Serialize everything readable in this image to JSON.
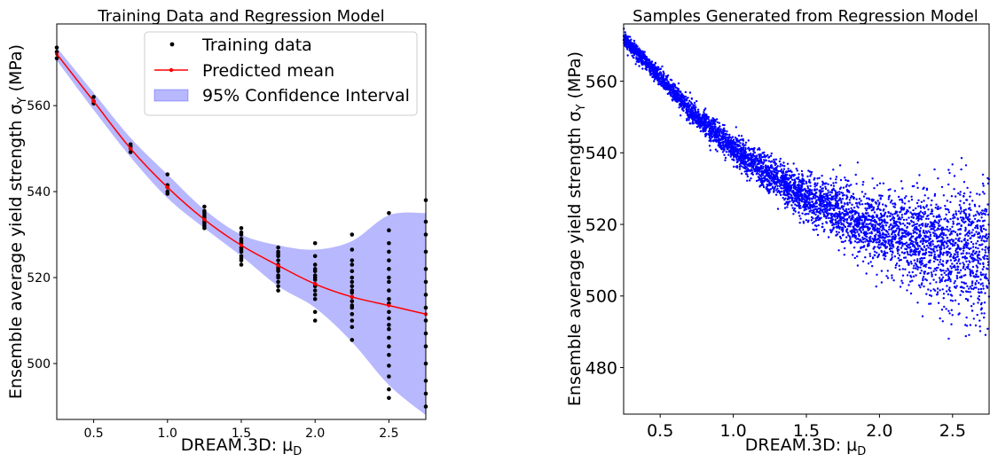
{
  "chart_data": [
    {
      "type": "scatter",
      "title": "Training Data and Regression Model",
      "xlabel": "DREAM.3D: μ",
      "xlabel_sub": "D",
      "ylabel": "Ensemble average yield strength σ",
      "ylabel_sub": "Y",
      "ylabel_unit": " (MPa)",
      "xlim": [
        0.25,
        2.75
      ],
      "ylim": [
        487,
        579
      ],
      "xticks": [
        0.5,
        1.0,
        1.5,
        2.0,
        2.5
      ],
      "xtick_labels": [
        "0.5",
        "1.0",
        "1.5",
        "2.0",
        "2.5"
      ],
      "yticks": [
        500,
        520,
        540,
        560
      ],
      "ytick_labels": [
        "500",
        "520",
        "540",
        "560"
      ],
      "grid": false,
      "legend_position": "top-right",
      "series": [
        {
          "name": "Training data",
          "kind": "points",
          "color": "#000000",
          "points": [
            [
              0.25,
              572.5
            ],
            [
              0.25,
              571.0
            ],
            [
              0.25,
              573.5
            ],
            [
              0.5,
              562.0
            ],
            [
              0.5,
              561.0
            ],
            [
              0.5,
              560.5
            ],
            [
              0.75,
              551.0
            ],
            [
              0.75,
              550.0
            ],
            [
              0.75,
              549.2
            ],
            [
              0.75,
              550.5
            ],
            [
              1.0,
              544.0
            ],
            [
              1.0,
              541.0
            ],
            [
              1.0,
              540.0
            ],
            [
              1.0,
              541.5
            ],
            [
              1.0,
              539.5
            ],
            [
              1.25,
              536.5
            ],
            [
              1.25,
              535.5
            ],
            [
              1.25,
              535.0
            ],
            [
              1.25,
              534.5
            ],
            [
              1.25,
              534.0
            ],
            [
              1.25,
              533.5
            ],
            [
              1.25,
              533.0
            ],
            [
              1.25,
              532.5
            ],
            [
              1.25,
              532.0
            ],
            [
              1.25,
              531.5
            ],
            [
              1.5,
              531.5
            ],
            [
              1.5,
              530.5
            ],
            [
              1.5,
              530.0
            ],
            [
              1.5,
              529.0
            ],
            [
              1.5,
              528.5
            ],
            [
              1.5,
              528.0
            ],
            [
              1.5,
              527.0
            ],
            [
              1.5,
              526.5
            ],
            [
              1.5,
              526.0
            ],
            [
              1.5,
              525.0
            ],
            [
              1.5,
              524.5
            ],
            [
              1.5,
              524.0
            ],
            [
              1.5,
              523.0
            ],
            [
              1.75,
              527.0
            ],
            [
              1.75,
              526.0
            ],
            [
              1.75,
              525.5
            ],
            [
              1.75,
              525.0
            ],
            [
              1.75,
              524.0
            ],
            [
              1.75,
              523.0
            ],
            [
              1.75,
              522.5
            ],
            [
              1.75,
              522.0
            ],
            [
              1.75,
              521.5
            ],
            [
              1.75,
              520.5
            ],
            [
              1.75,
              520.0
            ],
            [
              1.75,
              519.0
            ],
            [
              1.75,
              518.0
            ],
            [
              1.75,
              517.0
            ],
            [
              2.0,
              528.0
            ],
            [
              2.0,
              525.0
            ],
            [
              2.0,
              523.0
            ],
            [
              2.0,
              522.0
            ],
            [
              2.0,
              521.5
            ],
            [
              2.0,
              520.5
            ],
            [
              2.0,
              520.0
            ],
            [
              2.0,
              519.5
            ],
            [
              2.0,
              518.5
            ],
            [
              2.0,
              518.0
            ],
            [
              2.0,
              517.0
            ],
            [
              2.0,
              516.0
            ],
            [
              2.0,
              515.0
            ],
            [
              2.0,
              512.0
            ],
            [
              2.0,
              510.0
            ],
            [
              2.25,
              530.0
            ],
            [
              2.25,
              526.5
            ],
            [
              2.25,
              524.0
            ],
            [
              2.25,
              523.0
            ],
            [
              2.25,
              521.5
            ],
            [
              2.25,
              520.0
            ],
            [
              2.25,
              519.0
            ],
            [
              2.25,
              518.0
            ],
            [
              2.25,
              517.0
            ],
            [
              2.25,
              516.5
            ],
            [
              2.25,
              515.5
            ],
            [
              2.25,
              514.5
            ],
            [
              2.25,
              513.5
            ],
            [
              2.25,
              513.0
            ],
            [
              2.25,
              511.5
            ],
            [
              2.25,
              510.0
            ],
            [
              2.25,
              508.5
            ],
            [
              2.25,
              505.5
            ],
            [
              2.5,
              535.0
            ],
            [
              2.5,
              531.0
            ],
            [
              2.5,
              528.0
            ],
            [
              2.5,
              526.0
            ],
            [
              2.5,
              524.0
            ],
            [
              2.5,
              522.0
            ],
            [
              2.5,
              520.0
            ],
            [
              2.5,
              519.0
            ],
            [
              2.5,
              517.0
            ],
            [
              2.5,
              515.0
            ],
            [
              2.5,
              514.0
            ],
            [
              2.5,
              512.0
            ],
            [
              2.5,
              510.5
            ],
            [
              2.5,
              509.0
            ],
            [
              2.5,
              508.0
            ],
            [
              2.5,
              506.0
            ],
            [
              2.5,
              504.0
            ],
            [
              2.5,
              502.0
            ],
            [
              2.5,
              499.5
            ],
            [
              2.5,
              497.0
            ],
            [
              2.5,
              494.0
            ],
            [
              2.5,
              492.0
            ],
            [
              2.75,
              538.0
            ],
            [
              2.75,
              533.0
            ],
            [
              2.75,
              530.0
            ],
            [
              2.75,
              526.0
            ],
            [
              2.75,
              522.0
            ],
            [
              2.75,
              519.0
            ],
            [
              2.75,
              516.0
            ],
            [
              2.75,
              513.0
            ],
            [
              2.75,
              510.0
            ],
            [
              2.75,
              507.0
            ],
            [
              2.75,
              504.0
            ],
            [
              2.75,
              500.0
            ],
            [
              2.75,
              496.0
            ],
            [
              2.75,
              493.0
            ],
            [
              2.75,
              490.0
            ]
          ]
        },
        {
          "name": "Predicted mean",
          "kind": "line",
          "color": "#ff0000",
          "x": [
            0.25,
            0.5,
            0.75,
            1.0,
            1.25,
            1.5,
            1.75,
            2.0,
            2.25,
            2.5,
            2.75
          ],
          "y": [
            572.0,
            561.0,
            550.0,
            541.0,
            533.5,
            527.5,
            522.8,
            518.5,
            515.5,
            513.5,
            511.5
          ]
        },
        {
          "name": "95% Confidence Interval",
          "kind": "band",
          "color": "#0000ff",
          "x": [
            0.25,
            0.5,
            0.75,
            1.0,
            1.25,
            1.5,
            1.75,
            2.0,
            2.25,
            2.5,
            2.75
          ],
          "lower": [
            570.5,
            559.0,
            548.0,
            538.5,
            531.5,
            525.0,
            518.0,
            513.0,
            505.0,
            495.0,
            488.0
          ],
          "upper": [
            573.5,
            563.0,
            552.5,
            544.0,
            535.8,
            530.0,
            527.5,
            526.5,
            528.5,
            534.5,
            535.0
          ]
        }
      ]
    },
    {
      "type": "scatter",
      "title": "Samples Generated from Regression Model",
      "xlabel": "DREAM.3D: μ",
      "xlabel_sub": "D",
      "ylabel": "Ensemble average yield strength σ",
      "ylabel_sub": "Y",
      "ylabel_unit": " (MPa)",
      "xlim": [
        0.25,
        2.75
      ],
      "ylim": [
        467,
        576
      ],
      "xticks": [
        0.5,
        1.0,
        1.5,
        2.0,
        2.5
      ],
      "xtick_labels": [
        "0.5",
        "1.0",
        "1.5",
        "2.0",
        "2.5"
      ],
      "yticks": [
        480,
        500,
        520,
        540,
        560
      ],
      "ytick_labels": [
        "480",
        "500",
        "520",
        "540",
        "560"
      ],
      "grid": false,
      "series": [
        {
          "kind": "sample-cloud",
          "color": "#0000ff",
          "sample_count": 20000,
          "mean_x": [
            0.25,
            0.5,
            0.75,
            1.0,
            1.25,
            1.5,
            1.75,
            2.0,
            2.25,
            2.5,
            2.75
          ],
          "mean_y": [
            572.0,
            561.0,
            550.0,
            541.0,
            533.5,
            527.5,
            522.8,
            518.5,
            515.5,
            513.5,
            511.5
          ],
          "spread": [
            1.0,
            1.2,
            1.6,
            2.0,
            2.5,
            3.0,
            3.8,
            5.0,
            6.5,
            8.5,
            10.0
          ]
        }
      ]
    }
  ]
}
